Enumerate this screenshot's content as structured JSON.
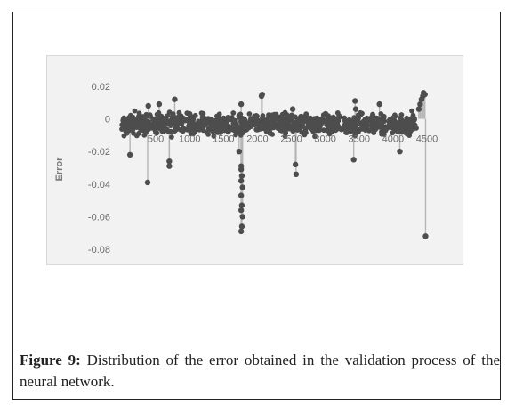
{
  "figure": {
    "label": "Figure 9:",
    "caption": "Distribution of the error obtained in the validation process of the neural network."
  },
  "colors": {
    "marker": "#4d4d4d",
    "stem": "#b5b5b5",
    "plot_background": "#f2f2f2"
  },
  "chart_data": {
    "type": "scatter",
    "title": "",
    "xlabel": "",
    "ylabel": "Error",
    "xlim": [
      0,
      4500
    ],
    "ylim": [
      -0.08,
      0.02
    ],
    "x_ticks": [
      500,
      1000,
      1500,
      2000,
      2500,
      3000,
      3500,
      4000,
      4500
    ],
    "y_ticks": [
      0.02,
      0,
      -0.02,
      -0.04,
      -0.06,
      -0.08
    ],
    "y_tick_labels": [
      "0.02",
      "0",
      "-0.02",
      "-0.04",
      "-0.06",
      "-0.08"
    ],
    "grid": false,
    "legend": "none",
    "markers_with_drop_lines": true,
    "bulk_band": {
      "x_range": [
        0,
        4350
      ],
      "y_range": [
        -0.012,
        0.006
      ],
      "note": "dense band of points around zero"
    },
    "points": [
      {
        "x": 120,
        "y": -0.022
      },
      {
        "x": 380,
        "y": -0.039
      },
      {
        "x": 390,
        "y": 0.008
      },
      {
        "x": 700,
        "y": -0.026
      },
      {
        "x": 700,
        "y": -0.029
      },
      {
        "x": 780,
        "y": 0.012
      },
      {
        "x": 550,
        "y": 0.009
      },
      {
        "x": 1000,
        "y": 0.003
      },
      {
        "x": 1730,
        "y": -0.02
      },
      {
        "x": 1760,
        "y": -0.029
      },
      {
        "x": 1760,
        "y": -0.031
      },
      {
        "x": 1770,
        "y": -0.035
      },
      {
        "x": 1760,
        "y": -0.038
      },
      {
        "x": 1780,
        "y": -0.042
      },
      {
        "x": 1760,
        "y": -0.047
      },
      {
        "x": 1770,
        "y": -0.053
      },
      {
        "x": 1760,
        "y": -0.056
      },
      {
        "x": 1780,
        "y": -0.06
      },
      {
        "x": 1770,
        "y": -0.066
      },
      {
        "x": 1760,
        "y": -0.069
      },
      {
        "x": 1760,
        "y": 0.009
      },
      {
        "x": 2060,
        "y": 0.014
      },
      {
        "x": 2070,
        "y": 0.015
      },
      {
        "x": 2560,
        "y": -0.028
      },
      {
        "x": 2570,
        "y": -0.034
      },
      {
        "x": 2520,
        "y": 0.006
      },
      {
        "x": 3420,
        "y": -0.025
      },
      {
        "x": 3440,
        "y": 0.011
      },
      {
        "x": 3450,
        "y": 0.006
      },
      {
        "x": 3800,
        "y": 0.009
      },
      {
        "x": 4100,
        "y": -0.02
      },
      {
        "x": 4380,
        "y": 0.006
      },
      {
        "x": 4400,
        "y": 0.009
      },
      {
        "x": 4420,
        "y": 0.012
      },
      {
        "x": 4440,
        "y": 0.014
      },
      {
        "x": 4450,
        "y": 0.016
      },
      {
        "x": 4470,
        "y": 0.015
      },
      {
        "x": 4480,
        "y": -0.072
      }
    ]
  }
}
